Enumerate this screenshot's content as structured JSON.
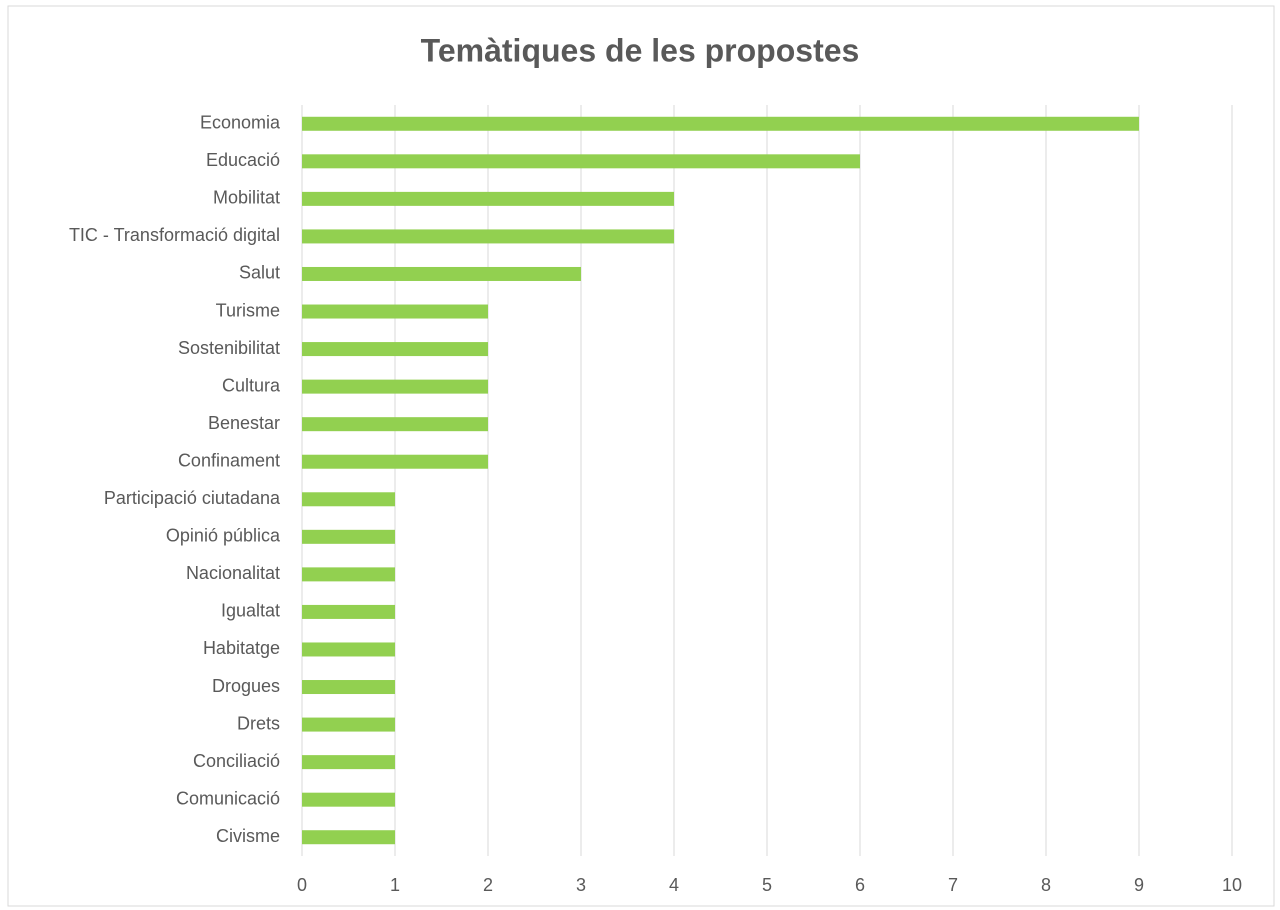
{
  "chart_data": {
    "type": "bar",
    "orientation": "horizontal",
    "title": "Temàtiques de les propostes",
    "categories": [
      "Economia",
      "Educació",
      "Mobilitat",
      "TIC - Transformació digital",
      "Salut",
      "Turisme",
      "Sostenibilitat",
      "Cultura",
      "Benestar",
      "Confinament",
      "Participació ciutadana",
      "Opinió pública",
      "Nacionalitat",
      "Igualtat",
      "Habitatge",
      "Drogues",
      "Drets",
      "Conciliació",
      "Comunicació",
      "Civisme"
    ],
    "values": [
      9,
      6,
      4,
      4,
      3,
      2,
      2,
      2,
      2,
      2,
      1,
      1,
      1,
      1,
      1,
      1,
      1,
      1,
      1,
      1
    ],
    "color": "#92d050",
    "xlim": [
      0,
      10
    ],
    "xticks": [
      0,
      1,
      2,
      3,
      4,
      5,
      6,
      7,
      8,
      9,
      10
    ],
    "grid": true
  }
}
